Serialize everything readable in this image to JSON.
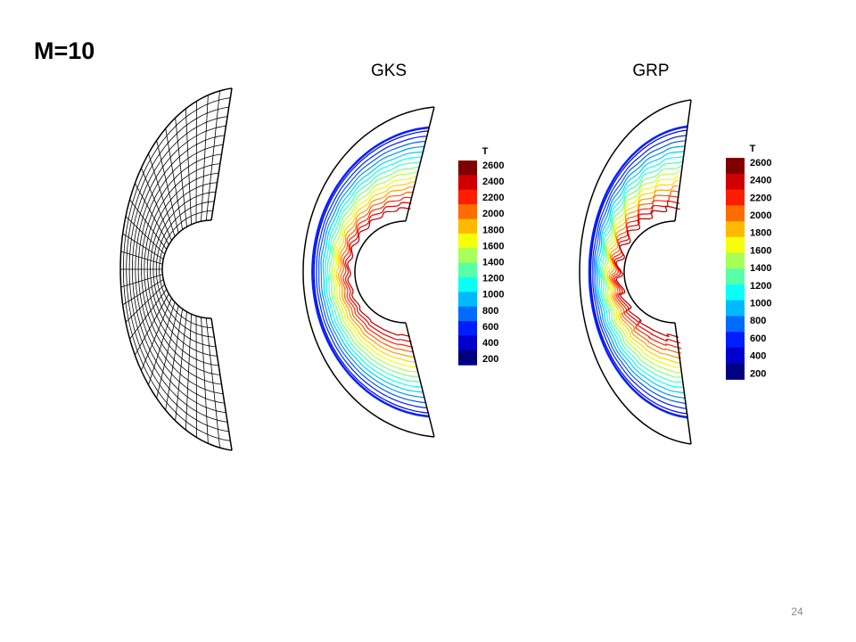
{
  "title": "M=10",
  "panels": [
    {
      "label": "GKS",
      "legend": {
        "title": "T",
        "labels": [
          2600,
          2400,
          2200,
          2000,
          1800,
          1600,
          1400,
          1200,
          1000,
          800,
          600,
          400,
          200
        ]
      }
    },
    {
      "label": "GRP",
      "legend": {
        "title": "T",
        "labels": [
          2600,
          2400,
          2200,
          2000,
          1800,
          1600,
          1400,
          1200,
          1000,
          800,
          600,
          400,
          200
        ]
      }
    }
  ],
  "page_number": "24"
}
